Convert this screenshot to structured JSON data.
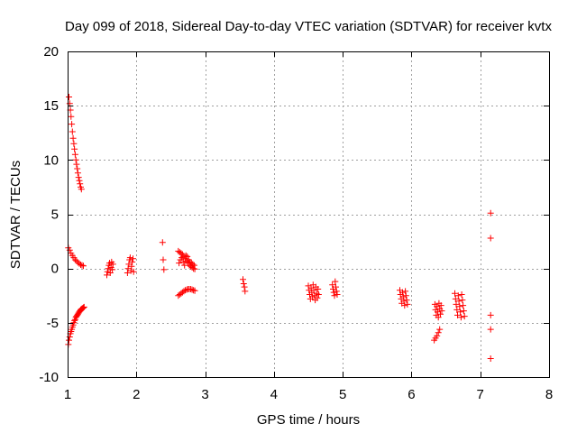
{
  "chart_data": {
    "type": "scatter",
    "title": "Day 099 of 2018, Sidereal Day-to-day VTEC variation (SDTVAR) for receiver kvtx",
    "xlabel": "GPS time / hours",
    "ylabel": "SDTVAR / TECUs",
    "xlim": [
      1,
      8
    ],
    "ylim": [
      -10,
      20
    ],
    "xticks": [
      1,
      2,
      3,
      4,
      5,
      6,
      7,
      8
    ],
    "xtick_labels": [
      "1",
      "2",
      "3",
      "4",
      "5",
      "6",
      "7",
      "8"
    ],
    "yticks": [
      -10,
      -5,
      0,
      5,
      10,
      15,
      20
    ],
    "ytick_labels": [
      "-10",
      "-5",
      "0",
      "5",
      "10",
      "15",
      "20"
    ],
    "grid": true,
    "marker": "plus",
    "marker_color": "#ff0000",
    "series": [
      {
        "name": "kvtx",
        "points": [
          [
            1.02,
            15.8
          ],
          [
            1.03,
            15.2
          ],
          [
            1.04,
            14.6
          ],
          [
            1.05,
            14.0
          ],
          [
            1.06,
            13.3
          ],
          [
            1.07,
            12.6
          ],
          [
            1.08,
            12.0
          ],
          [
            1.09,
            11.5
          ],
          [
            1.1,
            11.0
          ],
          [
            1.11,
            10.5
          ],
          [
            1.12,
            10.0
          ],
          [
            1.13,
            9.6
          ],
          [
            1.14,
            9.2
          ],
          [
            1.15,
            8.8
          ],
          [
            1.16,
            8.4
          ],
          [
            1.17,
            8.1
          ],
          [
            1.18,
            7.8
          ],
          [
            1.19,
            7.5
          ],
          [
            1.2,
            7.3
          ],
          [
            1.01,
            1.9
          ],
          [
            1.03,
            1.7
          ],
          [
            1.05,
            1.4
          ],
          [
            1.07,
            1.2
          ],
          [
            1.09,
            1.0
          ],
          [
            1.11,
            0.8
          ],
          [
            1.13,
            0.7
          ],
          [
            1.15,
            0.55
          ],
          [
            1.17,
            0.45
          ],
          [
            1.19,
            0.35
          ],
          [
            1.21,
            0.3
          ],
          [
            1.23,
            0.25
          ],
          [
            1.01,
            -7.0
          ],
          [
            1.02,
            -6.6
          ],
          [
            1.03,
            -6.3
          ],
          [
            1.04,
            -6.0
          ],
          [
            1.05,
            -5.8
          ],
          [
            1.06,
            -5.6
          ],
          [
            1.07,
            -5.4
          ],
          [
            1.08,
            -5.2
          ],
          [
            1.09,
            -5.0
          ],
          [
            1.1,
            -4.8
          ],
          [
            1.11,
            -4.7
          ],
          [
            1.12,
            -4.5
          ],
          [
            1.13,
            -4.4
          ],
          [
            1.14,
            -4.3
          ],
          [
            1.15,
            -4.2
          ],
          [
            1.16,
            -4.1
          ],
          [
            1.17,
            -4.0
          ],
          [
            1.18,
            -3.9
          ],
          [
            1.19,
            -3.8
          ],
          [
            1.2,
            -3.75
          ],
          [
            1.21,
            -3.7
          ],
          [
            1.22,
            -3.65
          ],
          [
            1.23,
            -3.6
          ],
          [
            1.24,
            -3.55
          ],
          [
            1.57,
            -0.6
          ],
          [
            1.58,
            -0.3
          ],
          [
            1.59,
            0.0
          ],
          [
            1.6,
            0.3
          ],
          [
            1.61,
            0.5
          ],
          [
            1.62,
            -0.4
          ],
          [
            1.63,
            0.1
          ],
          [
            1.64,
            0.6
          ],
          [
            1.65,
            -0.1
          ],
          [
            1.66,
            0.4
          ],
          [
            1.87,
            -0.4
          ],
          [
            1.88,
            0.0
          ],
          [
            1.89,
            0.4
          ],
          [
            1.9,
            0.8
          ],
          [
            1.91,
            1.0
          ],
          [
            1.92,
            -0.2
          ],
          [
            1.93,
            0.2
          ],
          [
            1.94,
            0.6
          ],
          [
            1.95,
            0.9
          ],
          [
            1.96,
            -0.3
          ],
          [
            2.38,
            2.4
          ],
          [
            2.39,
            0.8
          ],
          [
            2.4,
            -0.1
          ],
          [
            2.61,
            1.6
          ],
          [
            2.63,
            1.5
          ],
          [
            2.65,
            1.4
          ],
          [
            2.67,
            1.3
          ],
          [
            2.69,
            1.1
          ],
          [
            2.71,
            0.9
          ],
          [
            2.73,
            0.7
          ],
          [
            2.75,
            0.5
          ],
          [
            2.77,
            0.3
          ],
          [
            2.79,
            0.2
          ],
          [
            2.81,
            0.1
          ],
          [
            2.83,
            0.0
          ],
          [
            2.85,
            -0.05
          ],
          [
            2.62,
            0.5
          ],
          [
            2.64,
            0.8
          ],
          [
            2.66,
            1.0
          ],
          [
            2.68,
            0.6
          ],
          [
            2.7,
            0.3
          ],
          [
            2.72,
            1.2
          ],
          [
            2.74,
            1.1
          ],
          [
            2.76,
            0.8
          ],
          [
            2.78,
            0.6
          ],
          [
            2.8,
            0.5
          ],
          [
            2.82,
            0.4
          ],
          [
            2.84,
            0.3
          ],
          [
            2.61,
            -2.5
          ],
          [
            2.63,
            -2.4
          ],
          [
            2.65,
            -2.3
          ],
          [
            2.67,
            -2.2
          ],
          [
            2.69,
            -2.1
          ],
          [
            2.71,
            -2.0
          ],
          [
            2.73,
            -1.95
          ],
          [
            2.75,
            -1.9
          ],
          [
            2.77,
            -1.9
          ],
          [
            2.79,
            -1.9
          ],
          [
            2.81,
            -1.95
          ],
          [
            2.83,
            -2.0
          ],
          [
            2.85,
            -2.05
          ],
          [
            3.55,
            -1.0
          ],
          [
            3.56,
            -1.4
          ],
          [
            3.57,
            -1.7
          ],
          [
            3.58,
            -2.1
          ],
          [
            4.5,
            -1.6
          ],
          [
            4.51,
            -2.0
          ],
          [
            4.52,
            -2.4
          ],
          [
            4.53,
            -2.8
          ],
          [
            4.54,
            -1.8
          ],
          [
            4.55,
            -2.2
          ],
          [
            4.56,
            -2.6
          ],
          [
            4.57,
            -1.5
          ],
          [
            4.58,
            -2.0
          ],
          [
            4.59,
            -2.5
          ],
          [
            4.6,
            -2.9
          ],
          [
            4.61,
            -1.7
          ],
          [
            4.62,
            -2.3
          ],
          [
            4.63,
            -2.7
          ],
          [
            4.64,
            -1.9
          ],
          [
            4.65,
            -2.4
          ],
          [
            4.85,
            -1.5
          ],
          [
            4.86,
            -1.9
          ],
          [
            4.87,
            -2.2
          ],
          [
            4.88,
            -2.5
          ],
          [
            4.89,
            -1.2
          ],
          [
            4.9,
            -1.7
          ],
          [
            4.91,
            -2.1
          ],
          [
            4.92,
            -2.4
          ],
          [
            5.83,
            -2.0
          ],
          [
            5.84,
            -2.4
          ],
          [
            5.85,
            -2.8
          ],
          [
            5.86,
            -3.2
          ],
          [
            5.87,
            -2.2
          ],
          [
            5.88,
            -2.6
          ],
          [
            5.89,
            -3.0
          ],
          [
            5.9,
            -3.4
          ],
          [
            5.91,
            -2.1
          ],
          [
            5.92,
            -2.5
          ],
          [
            5.93,
            -2.9
          ],
          [
            5.94,
            -3.3
          ],
          [
            6.33,
            -6.6
          ],
          [
            6.35,
            -6.4
          ],
          [
            6.37,
            -6.2
          ],
          [
            6.39,
            -5.9
          ],
          [
            6.41,
            -5.6
          ],
          [
            6.34,
            -3.3
          ],
          [
            6.35,
            -3.8
          ],
          [
            6.36,
            -4.3
          ],
          [
            6.37,
            -3.5
          ],
          [
            6.38,
            -4.0
          ],
          [
            6.39,
            -4.5
          ],
          [
            6.4,
            -3.2
          ],
          [
            6.41,
            -3.7
          ],
          [
            6.42,
            -4.2
          ],
          [
            6.43,
            -3.4
          ],
          [
            6.44,
            -3.9
          ],
          [
            6.63,
            -2.3
          ],
          [
            6.64,
            -2.8
          ],
          [
            6.65,
            -3.3
          ],
          [
            6.66,
            -3.8
          ],
          [
            6.67,
            -4.3
          ],
          [
            6.68,
            -2.5
          ],
          [
            6.69,
            -3.0
          ],
          [
            6.7,
            -3.5
          ],
          [
            6.71,
            -4.0
          ],
          [
            6.72,
            -4.5
          ],
          [
            6.73,
            -2.4
          ],
          [
            6.74,
            -2.9
          ],
          [
            6.75,
            -3.4
          ],
          [
            6.76,
            -3.9
          ],
          [
            6.77,
            -4.4
          ],
          [
            7.15,
            5.1
          ],
          [
            7.15,
            2.8
          ],
          [
            7.15,
            -4.3
          ],
          [
            7.15,
            -5.6
          ],
          [
            7.15,
            -8.3
          ]
        ]
      }
    ]
  }
}
